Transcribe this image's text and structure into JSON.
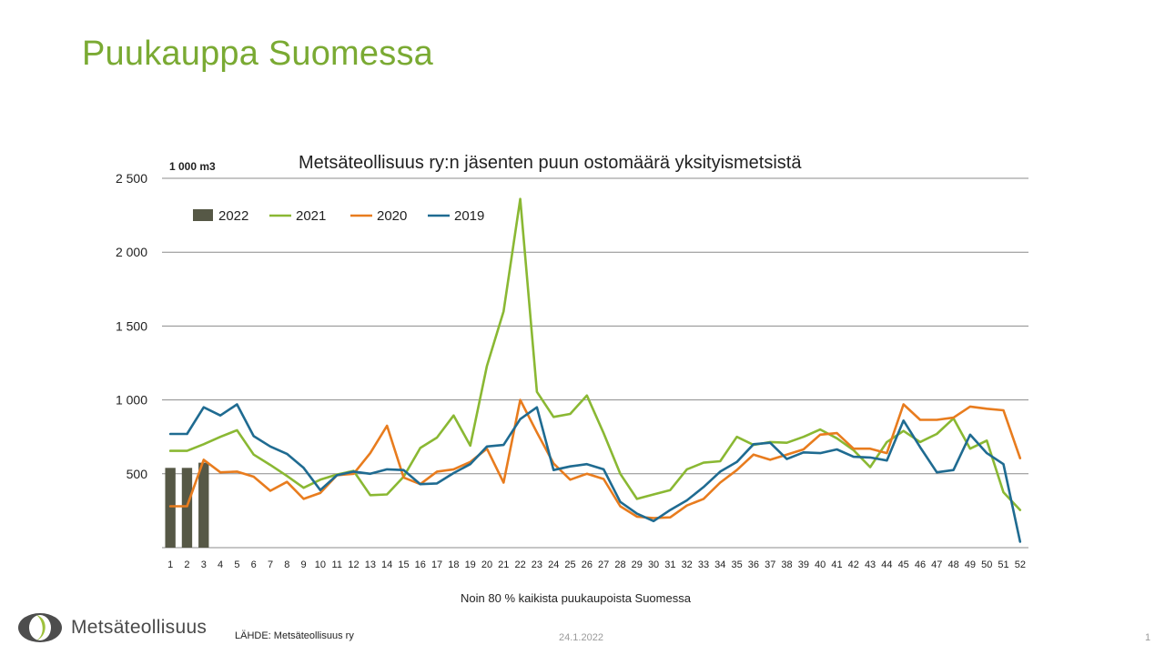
{
  "page": {
    "title": "Puukauppa Suomessa",
    "subtitle": "Noin 80 % kaikista puukaupoista Suomessa",
    "source": "LÄHDE:  Metsäteollisuus ry",
    "date": "24.1.2022",
    "page_number": "1"
  },
  "logo": {
    "text": "Metsäteollisuus",
    "colors": {
      "dark": "#4d4d4d",
      "green": "#9ec13b"
    }
  },
  "chart_data": {
    "type": "line",
    "title": "Metsäteollisuus ry:n jäsenten puun ostomäärä yksityismetsistä",
    "unit_label": "1 000 m3",
    "ylim": [
      0,
      2500
    ],
    "yticks": [
      500,
      1000,
      1500,
      2000,
      2500
    ],
    "ytick_labels": [
      "500",
      "1 000",
      "1 500",
      "2 000",
      "2 500"
    ],
    "grid": true,
    "legend_position": "top-left",
    "categories": [
      "1",
      "2",
      "3",
      "4",
      "5",
      "6",
      "7",
      "8",
      "9",
      "10",
      "11",
      "12",
      "13",
      "14",
      "15",
      "16",
      "17",
      "18",
      "19",
      "20",
      "21",
      "22",
      "23",
      "24",
      "25",
      "26",
      "27",
      "28",
      "29",
      "30",
      "31",
      "32",
      "33",
      "34",
      "35",
      "36",
      "37",
      "38",
      "39",
      "40",
      "41",
      "42",
      "43",
      "44",
      "45",
      "46",
      "47",
      "48",
      "49",
      "50",
      "51",
      "52"
    ],
    "bar_series": {
      "name": "2022",
      "color": "#565846",
      "values": [
        540,
        540,
        575
      ]
    },
    "series": [
      {
        "name": "2021",
        "color": "#8ab833",
        "values": [
          655,
          655,
          700,
          750,
          795,
          630,
          560,
          485,
          405,
          460,
          495,
          520,
          355,
          360,
          480,
          675,
          745,
          895,
          690,
          1230,
          1600,
          2360,
          1055,
          885,
          905,
          1030,
          775,
          500,
          330,
          360,
          390,
          530,
          575,
          585,
          750,
          695,
          715,
          710,
          750,
          800,
          740,
          660,
          545,
          715,
          790,
          715,
          770,
          875,
          670,
          725,
          375,
          255
        ]
      },
      {
        "name": "2020",
        "color": "#e87c1e",
        "values": [
          280,
          280,
          595,
          510,
          515,
          480,
          385,
          445,
          330,
          370,
          490,
          500,
          640,
          825,
          475,
          430,
          515,
          530,
          580,
          670,
          440,
          1000,
          780,
          570,
          460,
          500,
          465,
          280,
          210,
          200,
          205,
          285,
          330,
          440,
          525,
          630,
          595,
          630,
          665,
          765,
          775,
          670,
          670,
          640,
          970,
          865,
          865,
          880,
          955,
          940,
          930,
          605
        ]
      },
      {
        "name": "2019",
        "color": "#1f6b91",
        "values": [
          770,
          770,
          950,
          895,
          970,
          755,
          685,
          635,
          540,
          390,
          490,
          515,
          500,
          530,
          525,
          430,
          435,
          505,
          565,
          685,
          695,
          870,
          950,
          525,
          550,
          565,
          530,
          310,
          230,
          180,
          255,
          320,
          410,
          515,
          580,
          700,
          710,
          600,
          645,
          640,
          665,
          615,
          610,
          590,
          860,
          680,
          510,
          525,
          765,
          640,
          565,
          40
        ]
      }
    ]
  }
}
